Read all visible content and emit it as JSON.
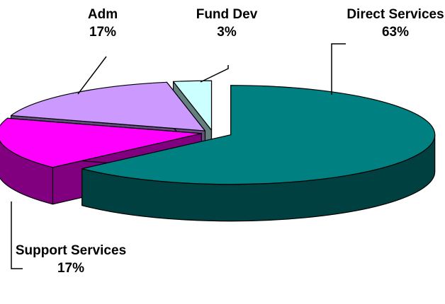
{
  "chart_data": {
    "type": "pie",
    "categories": [
      "Direct Services",
      "Support Services",
      "Adm",
      "Fund Dev"
    ],
    "values": [
      63,
      17,
      17,
      3
    ],
    "value_labels": [
      "63%",
      "17%",
      "17%",
      "3%"
    ],
    "colors": [
      "#008080",
      "#ff00ff",
      "#cc99ff",
      "#ccffff"
    ]
  }
}
